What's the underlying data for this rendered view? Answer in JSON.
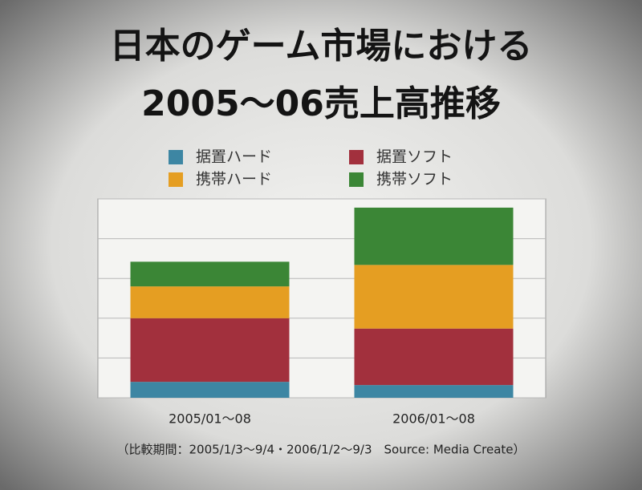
{
  "chart_data": {
    "type": "stacked-bar",
    "title": [
      "日本のゲーム市場における",
      "2005～06売上高推移"
    ],
    "categories": [
      "2005/01～08",
      "2006/01～08"
    ],
    "series": [
      {
        "name": "据置ハード",
        "color": "#3d86a3",
        "values": [
          0.4,
          0.32
        ]
      },
      {
        "name": "据置ソフト",
        "color": "#a2303d",
        "values": [
          1.6,
          1.42
        ]
      },
      {
        "name": "携帯ハード",
        "color": "#e59e22",
        "values": [
          0.8,
          1.6
        ]
      },
      {
        "name": "携帯ソフト",
        "color": "#3b8636",
        "values": [
          0.62,
          1.44
        ]
      }
    ],
    "ylim": [
      0,
      5
    ],
    "yticks": [
      0,
      1,
      2,
      3,
      4,
      5
    ],
    "grid": true,
    "note": "（比較期間：2005/1/3～9/4・2006/1/2～9/3　Source: Media Create）"
  }
}
